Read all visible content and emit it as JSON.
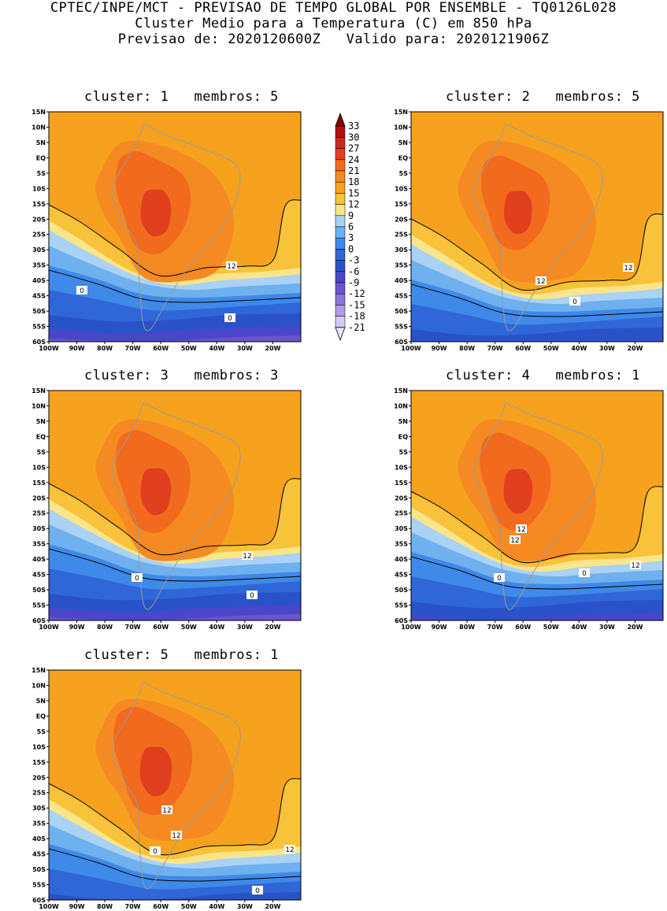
{
  "header": {
    "line1": "CPTEC/INPE/MCT - PREVISAO DE TEMPO GLOBAL POR ENSEMBLE - TQ0126L028",
    "line2": "Cluster Medio para a Temperatura (C) em 850 hPa",
    "line3": "Previsao de: 2020120600Z   Valido para: 2020121906Z"
  },
  "colorbar": {
    "levels": [
      "33",
      "30",
      "27",
      "24",
      "21",
      "18",
      "15",
      "12",
      "9",
      "6",
      "3",
      "0",
      "-3",
      "-6",
      "-9",
      "-12",
      "-15",
      "-18",
      "-21"
    ],
    "colors": [
      "#8b0000",
      "#b01010",
      "#c82a1e",
      "#e0401e",
      "#f26a1e",
      "#f58a22",
      "#f7a21e",
      "#f8c23a",
      "#fbe58a",
      "#a9d2f5",
      "#6fb0ef",
      "#3f89e8",
      "#2f66d8",
      "#2a52c8",
      "#4a46c8",
      "#6a55cc",
      "#8a74d8",
      "#b09ce6",
      "#d6c8f4"
    ]
  },
  "axes": {
    "lat_labels": [
      "15N",
      "10N",
      "5N",
      "EQ",
      "5S",
      "10S",
      "15S",
      "20S",
      "25S",
      "30S",
      "35S",
      "40S",
      "45S",
      "50S",
      "55S",
      "60S"
    ],
    "lon_labels": [
      "100W",
      "90W",
      "80W",
      "70W",
      "60W",
      "50W",
      "40W",
      "30W",
      "20W"
    ]
  },
  "panels": [
    {
      "title": "cluster: 1   membros: 5",
      "contour_labels": [
        "12",
        "0",
        "0"
      ]
    },
    {
      "title": "cluster: 2   membros: 5",
      "contour_labels": [
        "12",
        "12",
        "0"
      ]
    },
    {
      "title": "cluster: 3   membros: 3",
      "contour_labels": [
        "12",
        "0",
        "0"
      ]
    },
    {
      "title": "cluster: 4   membros: 1",
      "contour_labels": [
        "12",
        "12",
        "12",
        "0",
        "0"
      ]
    },
    {
      "title": "cluster: 5   membros: 1",
      "contour_labels": [
        "12",
        "12",
        "12",
        "0",
        "0"
      ]
    }
  ]
}
